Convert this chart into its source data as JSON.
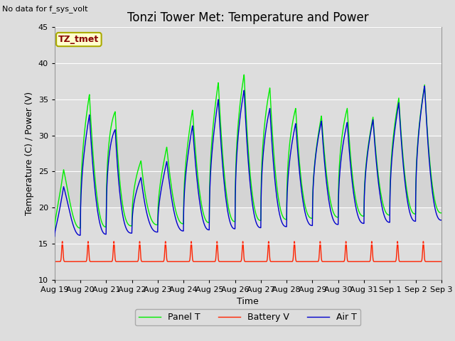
{
  "title": "Tonzi Tower Met: Temperature and Power",
  "ylabel": "Temperature (C) / Power (V)",
  "xlabel": "Time",
  "top_left_text": "No data for f_sys_volt",
  "annotation_text": "TZ_tmet",
  "annotation_box_color": "#ffffcc",
  "annotation_text_color": "#880000",
  "annotation_border_color": "#aaaa00",
  "ylim": [
    10,
    45
  ],
  "panel_t_color": "#00ee00",
  "battery_v_color": "#ff2200",
  "air_t_color": "#0000cc",
  "legend_labels": [
    "Panel T",
    "Battery V",
    "Air T"
  ],
  "grid_color": "#ffffff",
  "title_fontsize": 12,
  "axis_fontsize": 9,
  "tick_fontsize": 8
}
